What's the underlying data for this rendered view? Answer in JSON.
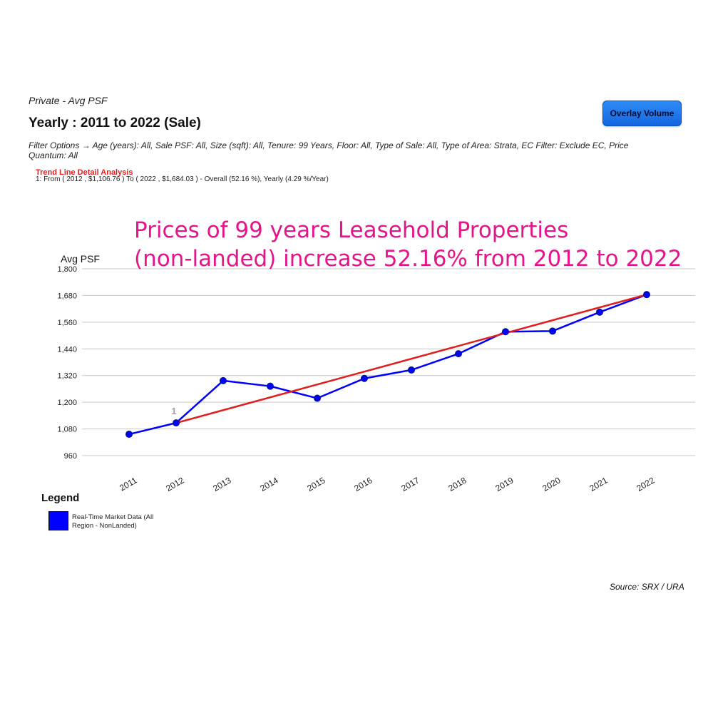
{
  "header": {
    "subtitle": "Private - Avg PSF",
    "title": "Yearly : 2011 to 2022 (Sale)",
    "filter_options": "Filter Options → Age (years): All, Sale PSF: All, Size (sqft): All, Tenure: 99 Years, Floor: All, Type of Sale: All, Type of Area: Strata, EC Filter: Exclude EC, Price Quantum: All",
    "overlay_button_label": "Overlay Volume"
  },
  "trend_analysis": {
    "heading": "Trend Line Detail Analysis",
    "detail": "1: From ( 2012 , $1,106.76 ) To ( 2022 , $1,684.03 ) - Overall (52.16 %), Yearly (4.29 %/Year)"
  },
  "annotation": {
    "line1": "Prices of 99 years Leasehold Properties",
    "line2": "(non-landed) increase 52.16% from 2012 to 2022"
  },
  "legend": {
    "title": "Legend",
    "items": [
      {
        "label": "Real-Time Market Data (All Region - NonLanded)",
        "color": "#0000ff"
      }
    ]
  },
  "source": "Source: SRX / URA",
  "chart_data": {
    "type": "line",
    "ylabel": "Avg PSF",
    "xlabel": "",
    "ylim": [
      960,
      1800
    ],
    "yticks": [
      960,
      1080,
      1200,
      1320,
      1440,
      1560,
      1680,
      1800
    ],
    "ytick_labels": [
      "960",
      "1,080",
      "1,200",
      "1,320",
      "1,440",
      "1,560",
      "1,680",
      "1,800"
    ],
    "grid": true,
    "categories": [
      "2011",
      "2012",
      "2013",
      "2014",
      "2015",
      "2016",
      "2017",
      "2018",
      "2019",
      "2020",
      "2021",
      "2022"
    ],
    "series": [
      {
        "name": "Real-Time Market Data (All Region - NonLanded)",
        "color": "#0000ff",
        "values": [
          1056,
          1107,
          1297,
          1272,
          1218,
          1307,
          1345,
          1418,
          1517,
          1520,
          1605,
          1684
        ]
      }
    ],
    "trend_line": {
      "label": "1",
      "color": "#e21d1d",
      "start": {
        "x": "2012",
        "y": 1106.76
      },
      "end": {
        "x": "2022",
        "y": 1684.03
      }
    }
  }
}
